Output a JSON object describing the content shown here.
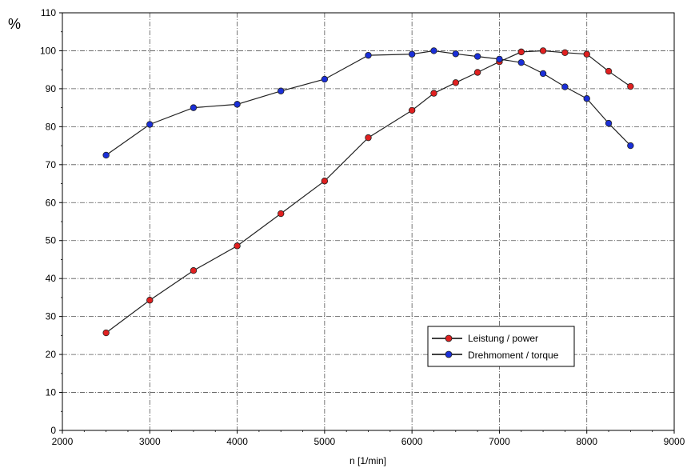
{
  "chart_data": {
    "type": "line",
    "ylabel": "%",
    "xlabel": "n [1/min]",
    "xlim": [
      2000,
      9000
    ],
    "ylim": [
      0,
      110
    ],
    "x_ticks": [
      2000,
      3000,
      4000,
      5000,
      6000,
      7000,
      8000,
      9000
    ],
    "y_ticks": [
      0,
      10,
      20,
      30,
      40,
      50,
      60,
      70,
      80,
      90,
      100,
      110
    ],
    "grid": true,
    "legend_position": "bottom-right",
    "series": [
      {
        "name": "Leistung / power",
        "color": "#e02020",
        "points": [
          [
            2500,
            25.7
          ],
          [
            3000,
            34.3
          ],
          [
            3500,
            42.1
          ],
          [
            4000,
            48.6
          ],
          [
            4500,
            57.1
          ],
          [
            5000,
            65.7
          ],
          [
            5500,
            77.1
          ],
          [
            6000,
            84.3
          ],
          [
            6250,
            88.8
          ],
          [
            6500,
            91.6
          ],
          [
            6750,
            94.3
          ],
          [
            7000,
            97.1
          ],
          [
            7250,
            99.7
          ],
          [
            7500,
            100.0
          ],
          [
            7750,
            99.5
          ],
          [
            8000,
            99.1
          ],
          [
            8250,
            94.6
          ],
          [
            8500,
            90.6
          ]
        ]
      },
      {
        "name": "Drehmoment / torque",
        "color": "#1a2fd8",
        "points": [
          [
            2500,
            72.5
          ],
          [
            3000,
            80.6
          ],
          [
            3500,
            85.0
          ],
          [
            4000,
            85.9
          ],
          [
            4500,
            89.4
          ],
          [
            5000,
            92.5
          ],
          [
            5500,
            98.8
          ],
          [
            6000,
            99.1
          ],
          [
            6250,
            100.0
          ],
          [
            6500,
            99.2
          ],
          [
            6750,
            98.5
          ],
          [
            7000,
            97.8
          ],
          [
            7250,
            96.9
          ],
          [
            7500,
            94.0
          ],
          [
            7750,
            90.5
          ],
          [
            8000,
            87.4
          ],
          [
            8250,
            80.9
          ],
          [
            8500,
            75.0
          ]
        ]
      }
    ]
  }
}
